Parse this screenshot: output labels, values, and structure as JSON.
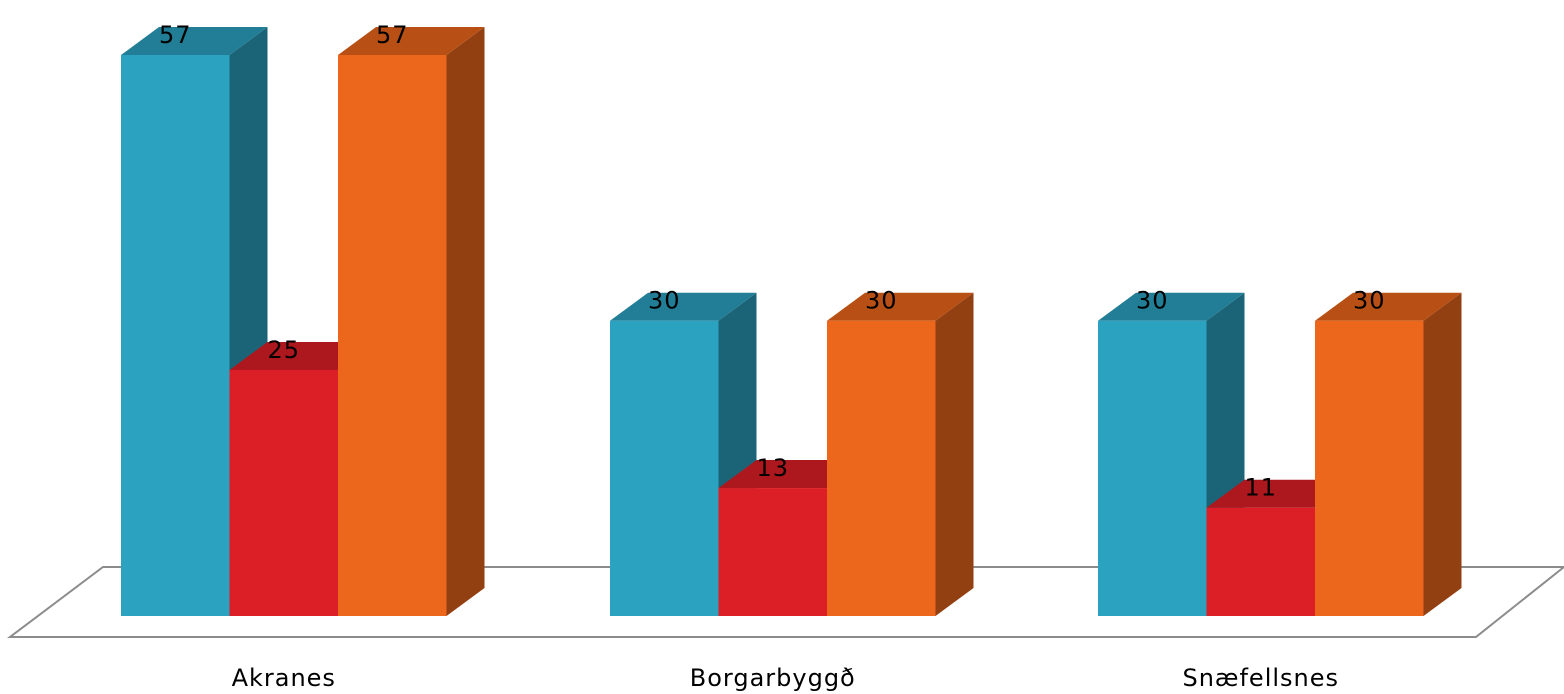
{
  "chart_data": {
    "type": "bar",
    "categories": [
      "Akranes",
      "Borgarbyggð",
      "Snæfellsnes"
    ],
    "series": [
      {
        "values": [
          57,
          30,
          30
        ],
        "color": "#2ba2c0"
      },
      {
        "values": [
          25,
          13,
          11
        ],
        "color": "#dc1f27"
      },
      {
        "values": [
          57,
          30,
          30
        ],
        "color": "#ec661b"
      }
    ],
    "data_labels": [
      [
        "57",
        "25",
        "57"
      ],
      [
        "30",
        "13",
        "30"
      ],
      [
        "30",
        "11",
        "30"
      ]
    ],
    "ylim": [
      0,
      57
    ],
    "grid": false,
    "legend": "none",
    "style": "3d-column"
  }
}
